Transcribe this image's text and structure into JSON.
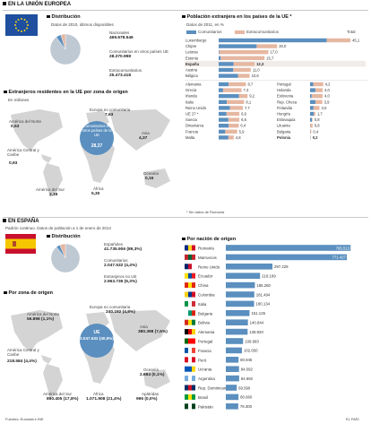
{
  "headers": {
    "eu_section": "EN LA UNIÓN EUROPEA",
    "es_section": "EN ESPAÑA"
  },
  "eu_distribution": {
    "title": "Distribución",
    "note": "Datos de 2010, últimos disponibles",
    "items": [
      {
        "label": "Nacionales",
        "value": "469.678.546"
      },
      {
        "label": "Comunitarios en otros países UE",
        "value": "28.370.998"
      },
      {
        "label": "Extracomunitarios",
        "value": "25.473.418"
      }
    ]
  },
  "eu_map": {
    "title": "Extranjeros residentes en la UE por zona de origen",
    "unit": "En millones",
    "center_label": "Comunitarios en otros países de la UE",
    "center_value": "28,37",
    "regions": [
      {
        "name": "América del Norte",
        "value": "0,53"
      },
      {
        "name": "América Central y Caribe",
        "value": "0,93"
      },
      {
        "name": "América del Sur",
        "value": "2,16"
      },
      {
        "name": "Europa no comunitaria",
        "value": "7,63"
      },
      {
        "name": "África",
        "value": "5,30"
      },
      {
        "name": "Asia",
        "value": "4,37"
      },
      {
        "name": "Oceanía",
        "value": "0,16"
      }
    ]
  },
  "eu_foreign_pct": {
    "title": "Población extranjera en los países de la UE *",
    "note": "Datos de 2011, en %",
    "legend": [
      "Comunitarios",
      "Extracomunitarios",
      "Total"
    ],
    "footnote": "* Sin datos de Rumanía",
    "colors": {
      "comunitarios": "#5a8fbf",
      "extracomunitarios": "#e6b7a1"
    }
  },
  "es_distribution": {
    "note": "Padrón continuo. Datos de población a 1 de enero de 2014",
    "title": "Distribución",
    "items": [
      {
        "label": "Españoles",
        "value": "41.735.906 (89,3%)"
      },
      {
        "label": "Comunitarios",
        "value": "2.047.532 (4,4%)"
      },
      {
        "label": "Extranjeros no UE",
        "value": "2.963.736 (6,3%)"
      }
    ]
  },
  "es_map": {
    "title": "Por zona de origen",
    "center_label": "UE",
    "center_value": "2.047.532 (40,9%)",
    "regions": [
      {
        "name": "América del Norte",
        "value": "56.898 (1,1%)"
      },
      {
        "name": "América Central y Caribe",
        "value": "218.584 (4,4%)"
      },
      {
        "name": "América del Sur",
        "value": "890.405 (17,8%)"
      },
      {
        "name": "Europa no comunitaria",
        "value": "240.192 (4,8%)"
      },
      {
        "name": "África",
        "value": "1.071.908 (21,4%)"
      },
      {
        "name": "Asia",
        "value": "380.398 (7,6%)"
      },
      {
        "name": "Oceanía",
        "value": "2.684 (0,1%)"
      },
      {
        "name": "Apátridas",
        "value": "996 (0,0%)"
      }
    ]
  },
  "es_nationality": {
    "title": "Por nación de origen"
  },
  "footer": {
    "source": "Fuentes: Eurostat e INE",
    "brand": "EL PAÍS"
  },
  "chart_data": [
    {
      "type": "pie",
      "categories": [
        "Nacionales",
        "Comunitarios en otros países UE",
        "Extracomunitarios"
      ],
      "values": [
        469678546,
        28370998,
        25473418
      ]
    },
    {
      "type": "bar",
      "title": "Población extranjera en los países de la UE *",
      "categories": [
        "Luxemburgo",
        "Chipre",
        "Letonia",
        "Estonia",
        "España",
        "Austria",
        "Bélgica",
        "Alemania",
        "Grecia",
        "Irlanda",
        "Italia",
        "Reino Unido",
        "UE 27 *",
        "Suecia",
        "Dinamarca",
        "Francia",
        "Malta",
        "Portugal",
        "Holanda",
        "Eslovenia",
        "Rep. Checa",
        "Finlandia",
        "Hungría",
        "Eslovaquia",
        "Lituania",
        "Bulgaria",
        "Polonia"
      ],
      "series": [
        {
          "name": "Comunitarios",
          "values": [
            37.0,
            13.0,
            0.2,
            0.7,
            5.1,
            5.0,
            6.6,
            3.2,
            1.4,
            6.5,
            2.6,
            3.6,
            2.5,
            3.1,
            3.2,
            2.1,
            3.1,
            1.0,
            1.7,
            0.5,
            1.7,
            1.1,
            1.2,
            0.6,
            0.1,
            0.1,
            0.1
          ]
        },
        {
          "name": "Extracomunitarios",
          "values": [
            8.1,
            7.0,
            16.8,
            15.0,
            7.2,
            6.0,
            4.0,
            5.5,
            5.9,
            2.7,
            5.5,
            4.1,
            4.1,
            3.5,
            3.2,
            3.8,
            1.7,
            3.2,
            2.3,
            3.5,
            2.2,
            1.9,
            0.5,
            0.2,
            0.7,
            0.3,
            0.1
          ]
        },
        {
          "name": "Total",
          "values": [
            45.1,
            20.0,
            17.0,
            15.7,
            12.3,
            11.0,
            10.6,
            8.7,
            7.3,
            9.2,
            8.1,
            7.7,
            6.6,
            6.6,
            6.4,
            5.9,
            4.8,
            4.2,
            4.0,
            4.0,
            3.9,
            3.0,
            1.7,
            0.8,
            0.8,
            0.4,
            0.2
          ]
        }
      ],
      "xlim": [
        0,
        46
      ]
    },
    {
      "type": "pie",
      "categories": [
        "Españoles",
        "Comunitarios",
        "Extranjeros no UE"
      ],
      "values": [
        41735906,
        2047532,
        2963736
      ]
    },
    {
      "type": "bar",
      "title": "Por nación de origen",
      "categories": [
        "Rumanía",
        "Marruecos",
        "Reino Unido",
        "Ecuador",
        "China",
        "Colombia",
        "Italia",
        "Bulgaria",
        "Bolivia",
        "Alemania",
        "Portugal",
        "Francia",
        "Perú",
        "Ucrania",
        "Argentina",
        "Rep. Dominicana",
        "Brasil",
        "Pakistán"
      ],
      "values": [
        795513,
        771427,
        297229,
        218189,
        185250,
        181494,
        180134,
        151126,
        140844,
        138920,
        109993,
        102650,
        80945,
        84092,
        84992,
        69590,
        80660,
        79300
      ],
      "xlim": [
        0,
        800000
      ]
    }
  ]
}
